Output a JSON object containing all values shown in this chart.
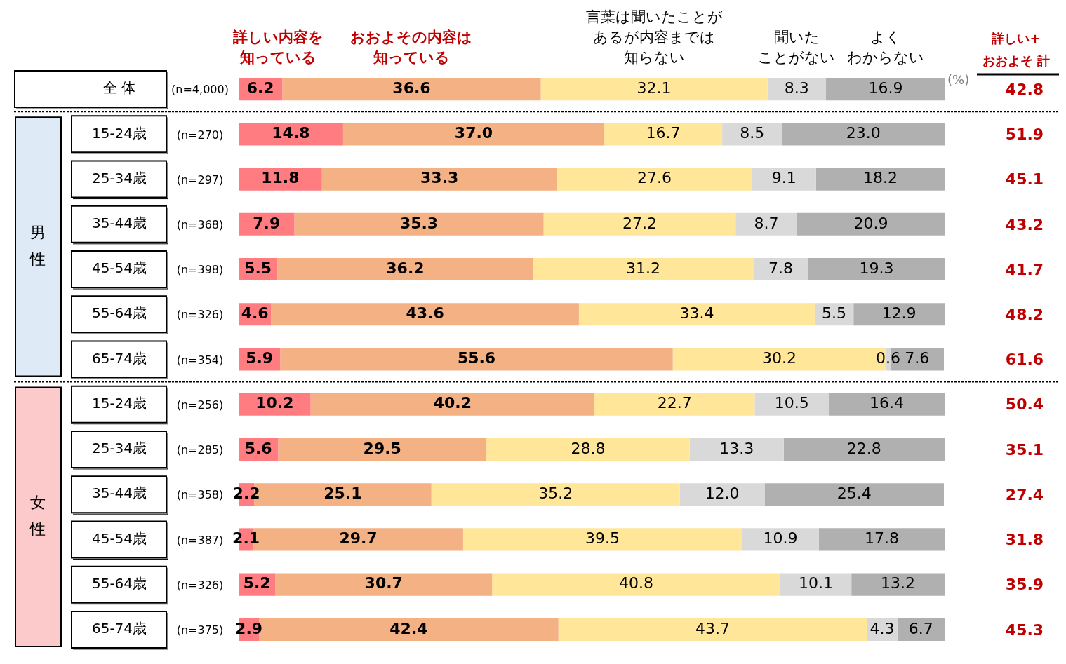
{
  "chart_data": {
    "type": "bar",
    "orientation": "horizontal",
    "stacked": true,
    "legend": "top",
    "xlim": [
      0,
      100
    ],
    "categories": [
      "全 体",
      "15-24歳",
      "25-34歳",
      "35-44歳",
      "45-54歳",
      "55-64歳",
      "65-74歳",
      "15-24歳",
      "25-34歳",
      "35-44歳",
      "45-54歳",
      "55-64歳",
      "65-74歳"
    ],
    "series": [
      {
        "name": "詳しい内容を知っている",
        "color": "#ff7c80",
        "values": [
          6.2,
          14.8,
          11.8,
          7.9,
          5.5,
          4.6,
          5.9,
          10.2,
          5.6,
          2.2,
          2.1,
          5.2,
          2.9
        ],
        "value_labels": [
          "6.2",
          "14.8",
          "11.8",
          "7.9",
          "5.5",
          "4.6",
          "5.9",
          "10.2",
          "5.6",
          "2.2",
          "2.1",
          "5.2",
          "2.9"
        ]
      },
      {
        "name": "おおよその内容は知っている",
        "color": "#f4b183",
        "values": [
          36.6,
          37.0,
          33.3,
          35.3,
          36.2,
          43.6,
          55.6,
          40.2,
          29.5,
          25.1,
          29.7,
          30.7,
          42.4
        ],
        "value_labels": [
          "36.6",
          "37.0",
          "33.3",
          "35.3",
          "36.2",
          "43.6",
          "55.6",
          "40.2",
          "29.5",
          "25.1",
          "29.7",
          "30.7",
          "42.4"
        ]
      },
      {
        "name": "言葉は聞いたことがあるが内容までは知らない",
        "color": "#ffe699",
        "values": [
          32.1,
          16.7,
          27.6,
          27.2,
          31.2,
          33.4,
          30.2,
          22.7,
          28.8,
          35.2,
          39.5,
          40.8,
          43.7
        ],
        "value_labels": [
          "32.1",
          "16.7",
          "27.6",
          "27.2",
          "31.2",
          "33.4",
          "30.2",
          "22.7",
          "28.8",
          "35.2",
          "39.5",
          "40.8",
          "43.7"
        ]
      },
      {
        "name": "聞いたことがない",
        "color": "#d9d9d9",
        "values": [
          8.3,
          8.5,
          9.1,
          8.7,
          7.8,
          5.5,
          0.6,
          10.5,
          13.3,
          12.0,
          10.9,
          10.1,
          4.3
        ],
        "value_labels": [
          "8.3",
          "8.5",
          "9.1",
          "8.7",
          "7.8",
          "5.5",
          "0.6",
          "10.5",
          "13.3",
          "12.0",
          "10.9",
          "10.1",
          "4.3"
        ]
      },
      {
        "name": "よくわからない",
        "color": "#b0b0b0",
        "values": [
          16.9,
          23.0,
          18.2,
          20.9,
          19.3,
          12.9,
          7.6,
          16.4,
          22.8,
          25.4,
          17.8,
          13.2,
          6.7
        ],
        "value_labels": [
          "16.9",
          "23.0",
          "18.2",
          "20.9",
          "19.3",
          "12.9",
          "7.6",
          "16.4",
          "22.8",
          "25.4",
          "17.8",
          "13.2",
          "6.7"
        ]
      }
    ],
    "annotations": [
      "(n=4,000)",
      "(n=270)",
      "(n=297)",
      "(n=368)",
      "(n=398)",
      "(n=326)",
      "(n=354)",
      "(n=256)",
      "(n=285)",
      "(n=358)",
      "(n=387)",
      "(n=326)",
      "(n=375)",
      "男性",
      "女性",
      "(%)",
      "詳しい+おおよそ 計",
      "42.8",
      "51.9",
      "45.1",
      "43.2",
      "41.7",
      "48.2",
      "61.6",
      "50.4",
      "35.1",
      "27.4",
      "31.8",
      "35.9",
      "45.3"
    ]
  }
}
